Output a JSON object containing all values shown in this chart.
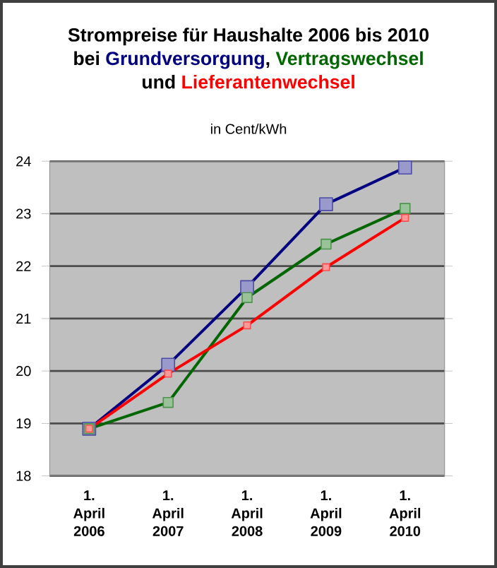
{
  "chart_data": {
    "type": "line",
    "title": "Strompreise für Haushalte 2006 bis 2010",
    "subtitle": "in Cent/kWh",
    "annotations": [
      "bei",
      ",",
      "und"
    ],
    "categories": [
      "1. April 2006",
      "1. April 2007",
      "1. April 2008",
      "1. April 2009",
      "1. April 2010"
    ],
    "series": [
      {
        "name": "Grundversorgung",
        "color": "#000080",
        "values": [
          18.9,
          20.12,
          21.6,
          23.18,
          23.88
        ]
      },
      {
        "name": "Vertragswechsel",
        "color": "#006600",
        "values": [
          18.9,
          19.4,
          21.4,
          22.42,
          23.1
        ]
      },
      {
        "name": "Lieferantenwechsel",
        "color": "#ff0000",
        "values": [
          18.9,
          19.95,
          20.87,
          21.98,
          22.92
        ]
      }
    ],
    "ylim": [
      18,
      24
    ],
    "yticks": [
      18,
      19,
      20,
      21,
      22,
      23,
      24
    ],
    "grid": "y",
    "marker": "square",
    "legend": false
  }
}
